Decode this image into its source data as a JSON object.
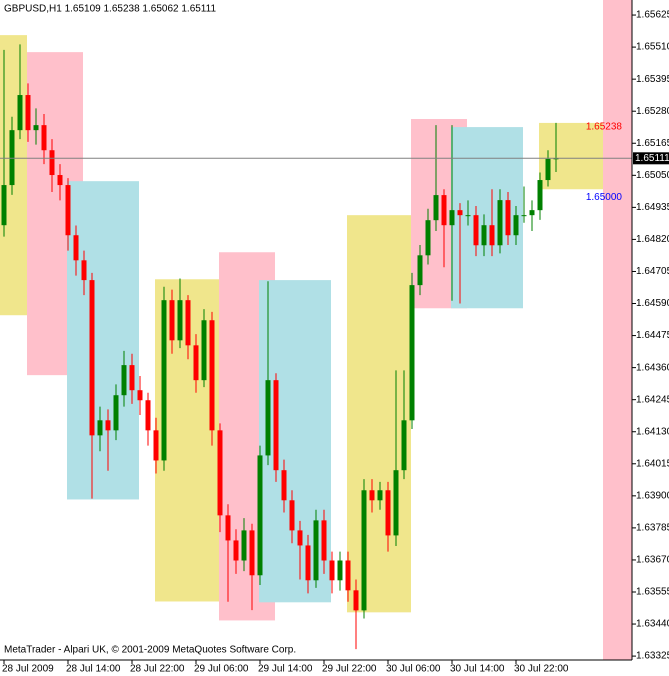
{
  "chart_data": {
    "type": "candlestick",
    "title": "GBPUSD,H1  1.65109 1.65238 1.65062 1.65111",
    "footer": "MetaTrader - Alpari UK, © 2001-2009 MetaQuotes Software Corp.",
    "categories": [
      "28 Jul 2009",
      null,
      null,
      null,
      null,
      null,
      null,
      null,
      "28 Jul 14:00",
      null,
      null,
      null,
      null,
      null,
      null,
      null,
      "28 Jul 22:00",
      null,
      null,
      null,
      null,
      null,
      null,
      null,
      "29 Jul 06:00",
      null,
      null,
      null,
      null,
      null,
      null,
      null,
      "29 Jul 14:00",
      null,
      null,
      null,
      null,
      null,
      null,
      null,
      "29 Jul 22:00",
      null,
      null,
      null,
      null,
      null,
      null,
      null,
      "30 Jul 06:00",
      null,
      null,
      null,
      null,
      null,
      null,
      null,
      "30 Jul 14:00",
      null,
      null,
      null,
      null,
      null,
      null,
      null,
      "30 Jul 22:00",
      null,
      null,
      null,
      null,
      null
    ],
    "open": [
      1.64871,
      1.65015,
      1.65212,
      1.65338,
      1.65212,
      1.6523,
      1.6514,
      1.65051,
      1.65015,
      1.64835,
      1.64745,
      1.64674,
      1.64117,
      1.64171,
      1.64135,
      1.64261,
      1.64369,
      1.64279,
      1.64243,
      1.64135,
      1.64027,
      1.64602,
      1.64458,
      1.64602,
      1.6444,
      1.64315,
      1.6453,
      1.64135,
      1.6383,
      1.6374,
      1.63668,
      1.63776,
      1.63615,
      1.64045,
      1.64315,
      1.63992,
      1.63884,
      1.63776,
      1.63722,
      1.63597,
      1.63812,
      1.63668,
      1.63597,
      1.63668,
      1.63561,
      1.63489,
      1.6392,
      1.63884,
      1.6392,
      1.63758,
      1.63992,
      1.64171,
      1.64656,
      1.64763,
      1.64889,
      1.64979,
      1.64871,
      1.64925,
      1.64907,
      1.64907,
      1.64799,
      1.64871,
      1.64799,
      1.64961,
      1.64835,
      1.64907,
      1.64907,
      1.64925,
      1.65033,
      1.65109
    ],
    "high": [
      1.655,
      1.6526,
      1.6552,
      1.6538,
      1.6529,
      1.6527,
      1.6518,
      1.6509,
      1.6504,
      1.6487,
      1.6478,
      1.647,
      1.6422,
      1.6421,
      1.643,
      1.6442,
      1.6441,
      1.6433,
      1.6427,
      1.6418,
      1.6465,
      1.6464,
      1.6468,
      1.6462,
      1.6448,
      1.6457,
      1.6456,
      1.6416,
      1.6387,
      1.6378,
      1.6382,
      1.638,
      1.6408,
      1.6467,
      1.6434,
      1.6403,
      1.6392,
      1.6381,
      1.6376,
      1.6385,
      1.6385,
      1.637,
      1.637,
      1.637,
      1.636,
      1.6396,
      1.6396,
      1.6395,
      1.6395,
      1.6435,
      1.6435,
      1.647,
      1.648,
      1.6493,
      1.6523,
      1.65,
      1.6523,
      1.6495,
      1.6496,
      1.6494,
      1.6491,
      1.65,
      1.65,
      1.6499,
      1.6494,
      1.6501,
      1.6496,
      1.6506,
      1.6514,
      1.65238
    ],
    "low": [
      1.6483,
      1.6498,
      1.6518,
      1.6517,
      1.6516,
      1.6509,
      1.6499,
      1.6496,
      1.6478,
      1.6469,
      1.6462,
      1.6389,
      1.6406,
      1.6399,
      1.641,
      1.6422,
      1.6423,
      1.6419,
      1.6408,
      1.6398,
      1.6399,
      1.6441,
      1.6443,
      1.6439,
      1.6427,
      1.6429,
      1.6408,
      1.6377,
      1.6352,
      1.6362,
      1.6363,
      1.6349,
      1.6358,
      1.6401,
      1.6395,
      1.6384,
      1.6373,
      1.636,
      1.6355,
      1.6357,
      1.6362,
      1.6355,
      1.6356,
      1.6352,
      1.6335,
      1.6346,
      1.6384,
      1.6385,
      1.637,
      1.6372,
      1.6396,
      1.6414,
      1.6462,
      1.6473,
      1.6485,
      1.6472,
      1.646,
      1.6459,
      1.6487,
      1.6476,
      1.6476,
      1.6476,
      1.6477,
      1.648,
      1.648,
      1.6488,
      1.6485,
      1.6489,
      1.6501,
      1.65062
    ],
    "close": [
      1.65015,
      1.65212,
      1.65338,
      1.65212,
      1.6523,
      1.6514,
      1.65051,
      1.65015,
      1.64835,
      1.64745,
      1.64674,
      1.64117,
      1.64171,
      1.64135,
      1.64261,
      1.64369,
      1.64279,
      1.64243,
      1.64135,
      1.64027,
      1.64602,
      1.64458,
      1.64602,
      1.6444,
      1.64315,
      1.6453,
      1.64135,
      1.6383,
      1.6374,
      1.63668,
      1.63776,
      1.63615,
      1.64045,
      1.64315,
      1.63992,
      1.63884,
      1.63776,
      1.63722,
      1.63597,
      1.63812,
      1.63668,
      1.63597,
      1.63668,
      1.63561,
      1.63489,
      1.6392,
      1.63884,
      1.6392,
      1.63758,
      1.63992,
      1.64171,
      1.64656,
      1.64763,
      1.64889,
      1.64979,
      1.64871,
      1.64925,
      1.64907,
      1.64907,
      1.64799,
      1.64871,
      1.64799,
      1.64961,
      1.64835,
      1.64907,
      1.64907,
      1.64925,
      1.65033,
      1.65109,
      1.65111
    ],
    "up_color": "#008000",
    "down_color": "#ff0000",
    "boxes": [
      {
        "color": "#f0e68c",
        "start": -1,
        "end": 3,
        "high": 1.65553,
        "low": 1.64548
      },
      {
        "color": "#ffc0cb",
        "start": 3,
        "end": 10,
        "high": 1.65492,
        "low": 1.64333
      },
      {
        "color": "#b0e0e6",
        "start": 8,
        "end": 17,
        "high": 1.65029,
        "low": 1.63887
      },
      {
        "color": "#f0e68c",
        "start": 19,
        "end": 27,
        "high": 1.64677,
        "low": 1.63521
      },
      {
        "color": "#ffc0cb",
        "start": 27,
        "end": 34,
        "high": 1.64774,
        "low": 1.63453
      },
      {
        "color": "#b0e0e6",
        "start": 32,
        "end": 41,
        "high": 1.64674,
        "low": 1.63518
      },
      {
        "color": "#f0e68c",
        "start": 43,
        "end": 51,
        "high": 1.64907,
        "low": 1.63482
      },
      {
        "color": "#ffc0cb",
        "start": 51,
        "end": 58,
        "high": 1.65252,
        "low": 1.64573
      },
      {
        "color": "#b0e0e6",
        "start": 56,
        "end": 65,
        "high": 1.65223,
        "low": 1.64573
      },
      {
        "color": "#f0e68c",
        "start": 67,
        "end": 75,
        "high": 1.65238,
        "low": 1.65,
        "high_label": "1.65238",
        "low_label": "1.65000",
        "high_label_color": "#ff0000",
        "low_label_color": "#0000ff"
      }
    ],
    "ylim": [
      1.63311,
      1.65679
    ],
    "yticks": [
      1.65625,
      {
        "value": 1.6551,
        "label": "1.65510"
      },
      1.65395,
      {
        "value": 1.6528,
        "label": "1.65280"
      },
      1.65165,
      {
        "value": 1.6505,
        "label": "1.65050"
      },
      1.64935,
      {
        "value": 1.6482,
        "label": "1.64820"
      },
      1.64705,
      {
        "value": 1.6459,
        "label": "1.64590"
      },
      1.64475,
      {
        "value": 1.6436,
        "label": "1.64360"
      },
      1.64245,
      {
        "value": 1.6413,
        "label": "1.64130"
      },
      1.64015,
      {
        "value": 1.639,
        "label": "1.63900"
      },
      1.63785,
      {
        "value": 1.6367,
        "label": "1.63670"
      },
      1.63555,
      {
        "value": 1.6344,
        "label": "1.63440"
      },
      1.63325
    ]
  }
}
